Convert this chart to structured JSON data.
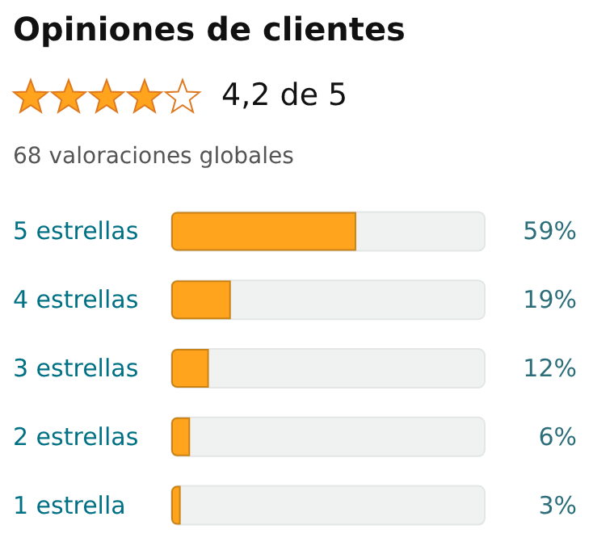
{
  "chart_data": {
    "type": "bar",
    "orientation": "horizontal",
    "title": "Opiniones de clientes",
    "subtitle": "4,2 de 5",
    "annotations": [
      "68 valoraciones globales"
    ],
    "categories": [
      "5 estrellas",
      "4 estrellas",
      "3 estrellas",
      "2 estrellas",
      "1 estrella"
    ],
    "values": [
      59,
      19,
      12,
      6,
      3
    ],
    "value_labels": [
      "59%",
      "19%",
      "12%",
      "6%",
      "3%"
    ],
    "color": "#ffa41c",
    "xlim": [
      0,
      100
    ],
    "tick_labels": "y"
  }
}
